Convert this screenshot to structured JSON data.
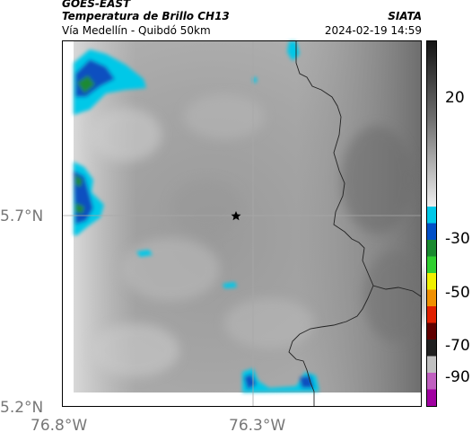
{
  "header": {
    "satellite": "GOES-EAST",
    "product": "Temperatura de Brillo CH13",
    "region": "Vía Medellín - Quibdó 50km",
    "organization": "SIATA",
    "timestamp": "2024-02-19 14:59"
  },
  "map": {
    "lat_labels": [
      "5.7°N",
      "5.2°N"
    ],
    "lon_labels": [
      "76.8°W",
      "76.3°W"
    ],
    "marker": "star-marker",
    "gridline_color": "#a8a8a8",
    "border_color": "#222222"
  },
  "colorbar": {
    "ticks": [
      "20",
      "-30",
      "-50",
      "-70",
      "-90"
    ],
    "segments": [
      "#1a1a1a",
      "#5a5a5a",
      "#9a9a9a",
      "#d8d8d8",
      "#00c8e8",
      "#0050c8",
      "#1a8a30",
      "#30d030",
      "#f0f000",
      "#f09000",
      "#e02000",
      "#600000",
      "#202020",
      "#c0c0c0",
      "#c060c0",
      "#a000a0"
    ]
  }
}
